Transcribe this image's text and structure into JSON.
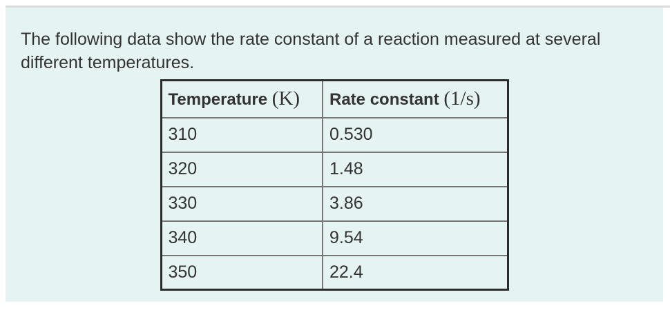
{
  "panel": {
    "intro_text": "The following data show the rate constant of a reaction measured at several different temperatures."
  },
  "table": {
    "headers": [
      {
        "label": "Temperature",
        "unit": "(K)"
      },
      {
        "label": "Rate constant",
        "unit": "(1/s)"
      }
    ],
    "rows": [
      {
        "temperature": "310",
        "rate_constant": "0.530"
      },
      {
        "temperature": "320",
        "rate_constant": "1.48"
      },
      {
        "temperature": "330",
        "rate_constant": "3.86"
      },
      {
        "temperature": "340",
        "rate_constant": "9.54"
      },
      {
        "temperature": "350",
        "rate_constant": "22.4"
      }
    ]
  },
  "colors": {
    "panel_background": "#e5f3f2",
    "text": "#333333",
    "table_outer_border": "#2b2b2b",
    "table_grid_line": "#767676",
    "top_rule": "#dcdcdc"
  }
}
